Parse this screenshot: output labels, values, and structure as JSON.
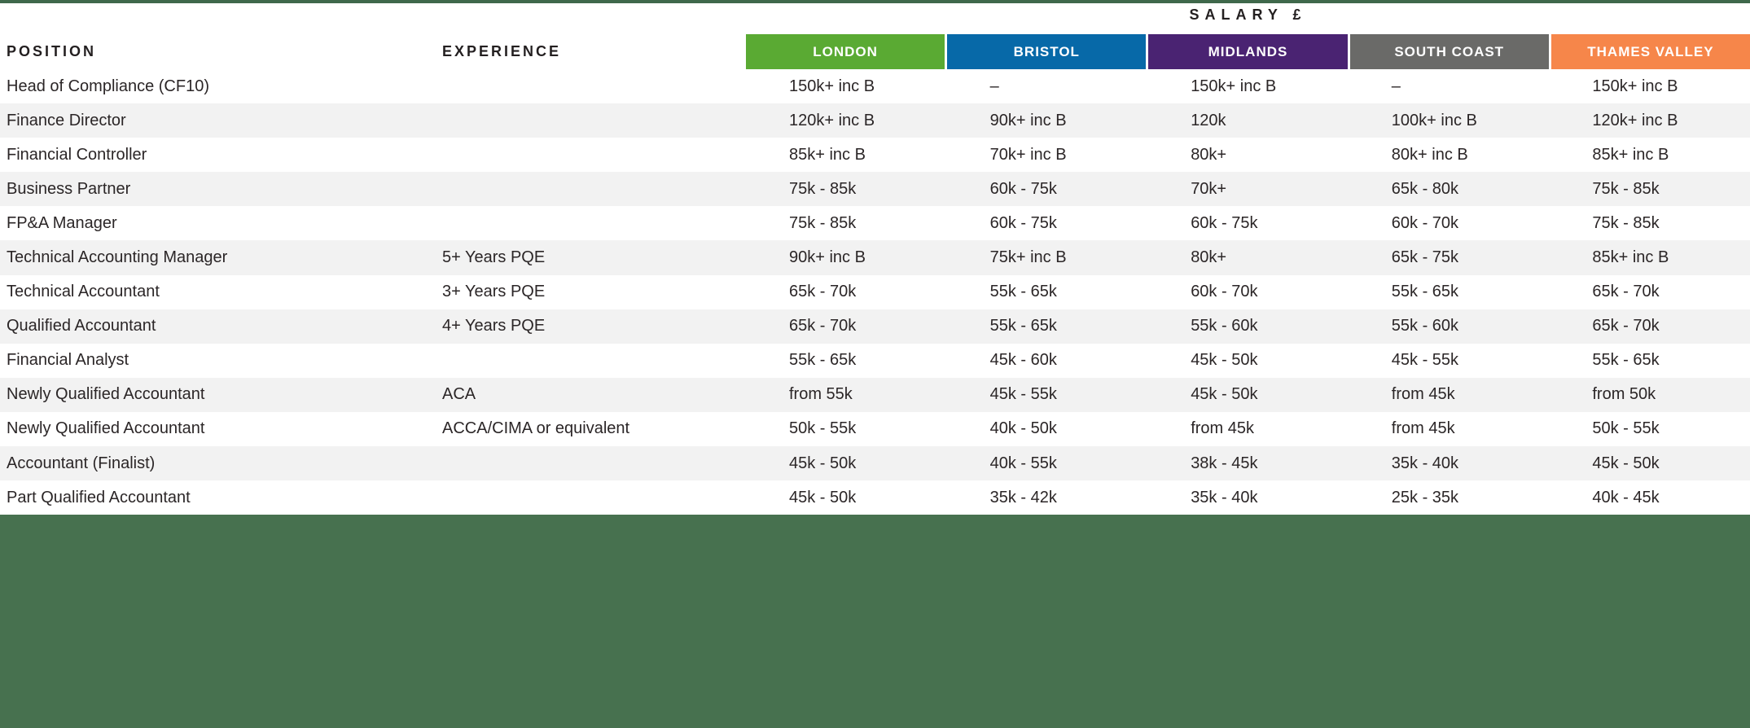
{
  "table": {
    "salary_header": "SALARY £",
    "position_header": "POSITION",
    "experience_header": "EXPERIENCE",
    "regions": [
      {
        "label": "LONDON",
        "color": "#5aaa33"
      },
      {
        "label": "BRISTOL",
        "color": "#0769a8"
      },
      {
        "label": "MIDLANDS",
        "color": "#4a2372"
      },
      {
        "label": "SOUTH COAST",
        "color": "#6a6a68"
      },
      {
        "label": "THAMES VALLEY",
        "color": "#f6864a"
      }
    ],
    "rows": [
      {
        "position": "Head of Compliance (CF10)",
        "experience": "",
        "salaries": [
          "150k+ inc B",
          "–",
          "150k+ inc B",
          "–",
          "150k+ inc B"
        ]
      },
      {
        "position": "Finance Director",
        "experience": "",
        "salaries": [
          "120k+ inc B",
          "90k+ inc B",
          "120k",
          "100k+ inc B",
          "120k+ inc B"
        ]
      },
      {
        "position": "Financial Controller",
        "experience": "",
        "salaries": [
          "85k+ inc B",
          "70k+ inc B",
          "80k+",
          "80k+ inc B",
          "85k+ inc B"
        ]
      },
      {
        "position": "Business Partner",
        "experience": "",
        "salaries": [
          "75k - 85k",
          "60k - 75k",
          "70k+",
          "65k - 80k",
          "75k - 85k"
        ]
      },
      {
        "position": "FP&A Manager",
        "experience": "",
        "salaries": [
          "75k - 85k",
          "60k - 75k",
          "60k - 75k",
          "60k - 70k",
          "75k - 85k"
        ]
      },
      {
        "position": "Technical Accounting Manager",
        "experience": "5+ Years PQE",
        "salaries": [
          "90k+ inc B",
          "75k+ inc B",
          "80k+",
          "65k - 75k",
          "85k+ inc B"
        ]
      },
      {
        "position": "Technical Accountant",
        "experience": "3+ Years PQE",
        "salaries": [
          "65k - 70k",
          "55k - 65k",
          "60k - 70k",
          "55k - 65k",
          "65k - 70k"
        ]
      },
      {
        "position": "Qualified Accountant",
        "experience": "4+ Years PQE",
        "salaries": [
          "65k - 70k",
          "55k - 65k",
          "55k - 60k",
          "55k - 60k",
          "65k - 70k"
        ]
      },
      {
        "position": "Financial Analyst",
        "experience": "",
        "salaries": [
          "55k - 65k",
          "45k - 60k",
          "45k - 50k",
          "45k - 55k",
          "55k - 65k"
        ]
      },
      {
        "position": "Newly Qualified Accountant",
        "experience": "ACA",
        "salaries": [
          "from 55k",
          "45k - 55k",
          "45k - 50k",
          "from 45k",
          "from 50k"
        ]
      },
      {
        "position": "Newly Qualified Accountant",
        "experience": "ACCA/CIMA or equivalent",
        "salaries": [
          "50k - 55k",
          "40k - 50k",
          "from 45k",
          "from 45k",
          "50k - 55k"
        ]
      },
      {
        "position": "Accountant (Finalist)",
        "experience": "",
        "salaries": [
          "45k - 50k",
          "40k - 55k",
          "38k - 45k",
          "35k - 40k",
          "45k - 50k"
        ]
      },
      {
        "position": "Part Qualified Accountant",
        "experience": "",
        "salaries": [
          "45k - 50k",
          "35k - 42k",
          "35k - 40k",
          "25k - 35k",
          "40k - 45k"
        ]
      }
    ]
  },
  "colors": {
    "top_line_green": "#3f684b",
    "footer_green": "#47714f",
    "row_stripe": "#f2f2f2",
    "header_text": "#231f20",
    "body_text": "#2b2627"
  }
}
